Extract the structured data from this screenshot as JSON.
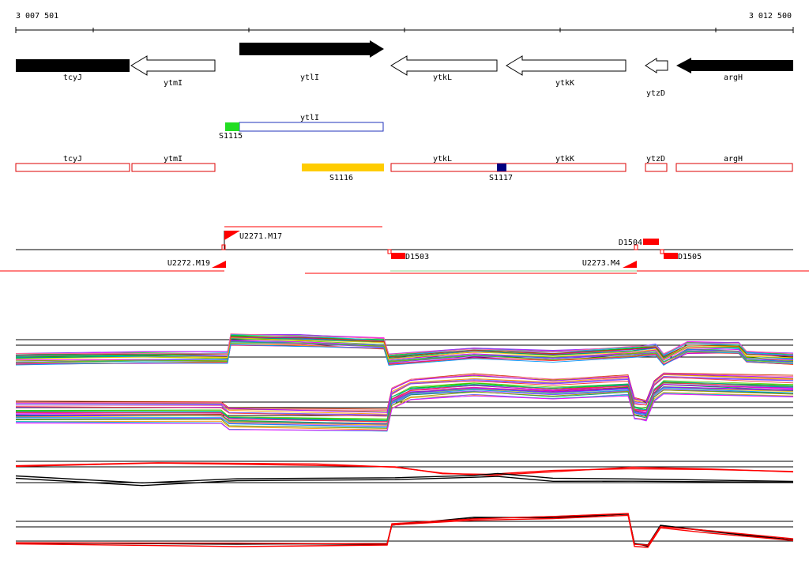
{
  "ruler": {
    "start_label": "3 007 501",
    "end_label": "3 012 500"
  },
  "genes": [
    {
      "name": "tcyJ",
      "strand": "-",
      "style": "filled"
    },
    {
      "name": "ytmI",
      "strand": "-",
      "style": "outline"
    },
    {
      "name": "ytlI",
      "strand": "+",
      "style": "filled"
    },
    {
      "name": "ytkL",
      "strand": "-",
      "style": "outline"
    },
    {
      "name": "ytkK",
      "strand": "-",
      "style": "outline"
    },
    {
      "name": "ytzD",
      "strand": "-",
      "style": "outline"
    },
    {
      "name": "argH",
      "strand": "-",
      "style": "filled"
    }
  ],
  "transcript": {
    "gene_label": "ytlI",
    "start_label": "S1115"
  },
  "segments": {
    "boxes": [
      "tcyJ",
      "ytmI",
      "ytkL",
      "ytkK",
      "ytzD",
      "argH"
    ],
    "markers": [
      {
        "label": "S1116",
        "color": "#ffcc00"
      },
      {
        "label": "S1117",
        "color": "#000080"
      }
    ]
  },
  "features": {
    "up": [
      {
        "label": "U2271.M17"
      },
      {
        "label": "U2272.M19"
      },
      {
        "label": "U2273.M4"
      }
    ],
    "down": [
      {
        "label": "D1503"
      },
      {
        "label": "D1504"
      },
      {
        "label": "D1505"
      }
    ]
  },
  "colors": {
    "gene_fill": "#000000",
    "box_outline": "#dd0000",
    "transcript_outline": "#2233bb",
    "transcript_start": "#22dd22",
    "feature_red": "#ff0000"
  }
}
